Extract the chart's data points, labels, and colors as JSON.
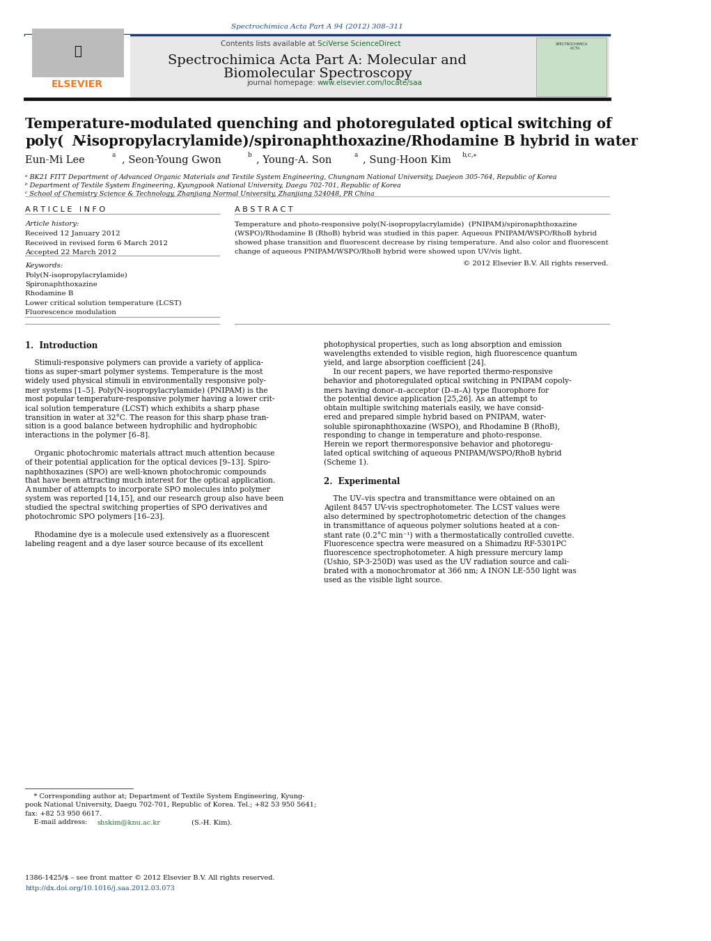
{
  "page_width": 10.21,
  "page_height": 13.51,
  "bg_color": "#ffffff",
  "top_citation": "Spectrochimica Acta Part A 94 (2012) 308–311",
  "top_citation_color": "#1a4a8a",
  "header_bg": "#e8e8e8",
  "header_border_top_color": "#1a3a7a",
  "header_border_bottom_color": "#222222",
  "sciverse_color": "#1a6a2a",
  "journal_title_line1": "Spectrochimica Acta Part A: Molecular and",
  "journal_title_line2": "Biomolecular Spectroscopy",
  "journal_url": "www.elsevier.com/locate/saa",
  "journal_url_color": "#1a6a2a",
  "elsevier_orange": "#f47920",
  "article_title_line1": "Temperature-modulated quenching and photoregulated optical switching of",
  "affil_a": "ᵃ BK21 FITT Department of Advanced Organic Materials and Textile System Engineering, Chungnam National University, Daejeon 305-764, Republic of Korea",
  "affil_b": "ᵇ Department of Textile System Engineering, Kyungpook National University, Daegu 702-701, Republic of Korea",
  "affil_c": "ᶜ School of Chemistry Science & Technology, Zhanjiang Normal University, Zhanjiang 524048, PR China",
  "received1": "Received 12 January 2012",
  "received2": "Received in revised form 6 March 2012",
  "accepted": "Accepted 22 March 2012",
  "keyword1": "Poly(N-isopropylacrylamide)",
  "keyword2": "Spironaphthoxazine",
  "keyword3": "Rhodamine B",
  "keyword4": "Lower critical solution temperature (LCST)",
  "keyword5": "Fluorescence modulation",
  "copyright": "© 2012 Elsevier B.V. All rights reserved.",
  "footer_text1": "1386-1425/$ – see front matter © 2012 Elsevier B.V. All rights reserved.",
  "footer_url": "http://dx.doi.org/10.1016/j.saa.2012.03.073"
}
